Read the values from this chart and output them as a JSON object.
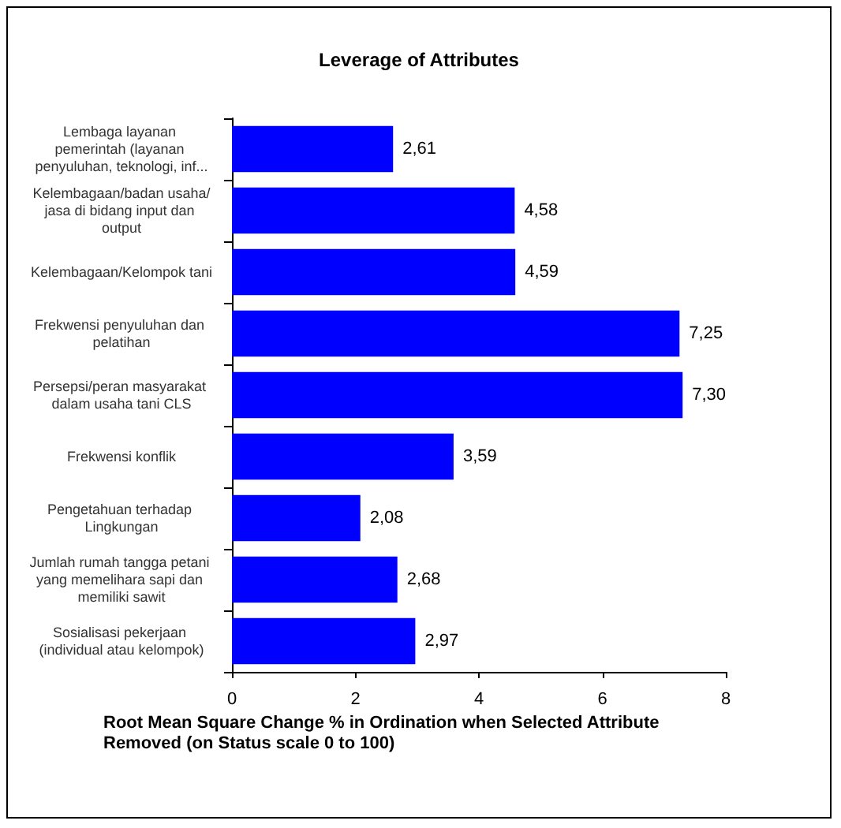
{
  "chart_data": {
    "type": "bar",
    "orientation": "horizontal",
    "title": "Leverage of Attributes",
    "xlabel": "Root Mean Square Change % in Ordination when Selected Attribute Removed (on Status scale 0 to 100)",
    "categories": [
      "Lembaga layanan pemerintah (layanan penyuluhan, teknologi, inf...",
      "Kelembagaan/badan usaha/jasa di bidang input dan output",
      "Kelembagaan/Kelompok tani",
      "Frekwensi penyuluhan dan pelatihan",
      "Persepsi/peran masyarakat dalam usaha tani CLS",
      "Frekwensi konflik",
      "Pengetahuan terhadap Lingkungan",
      "Jumlah rumah tangga petani yang memelihara sapi dan memiliki sawit",
      "Sosialisasi pekerjaan (individual atau kelompok)"
    ],
    "values": [
      2.61,
      4.58,
      4.59,
      7.25,
      7.3,
      3.59,
      2.08,
      2.68,
      2.97
    ],
    "value_labels": [
      "2,61",
      "4,58",
      "4,59",
      "7,25",
      "7,30",
      "3,59",
      "2,08",
      "2,68",
      "2,97"
    ],
    "color": "#0000ff",
    "xlim": [
      0,
      8
    ],
    "xticks": [
      0,
      2,
      4,
      6,
      8
    ]
  }
}
